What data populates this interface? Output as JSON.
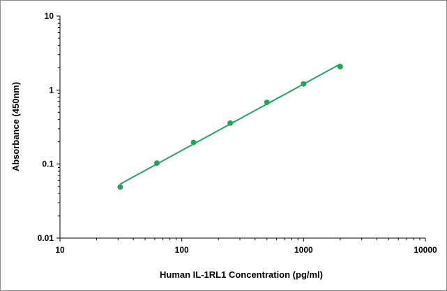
{
  "chart_data": {
    "type": "scatter",
    "title": "",
    "xlabel": "Human IL-1RL1 Concentration (pg/ml)",
    "ylabel": "Absorbance (450nm)",
    "x_scale": "log",
    "y_scale": "log",
    "xlim": [
      10,
      10000
    ],
    "ylim": [
      0.01,
      10
    ],
    "x_ticks": [
      "10",
      "100",
      "1000",
      "10000"
    ],
    "y_ticks": [
      "0.01",
      "0.1",
      "1",
      "10"
    ],
    "grid": false,
    "legend": "none",
    "series": [
      {
        "x": [
          31.25,
          62.5,
          125,
          250,
          500,
          1000,
          2000
        ],
        "y": [
          0.049,
          0.103,
          0.196,
          0.358,
          0.683,
          1.212,
          2.071
        ],
        "fit": "power",
        "color": "#22a45a"
      }
    ]
  }
}
